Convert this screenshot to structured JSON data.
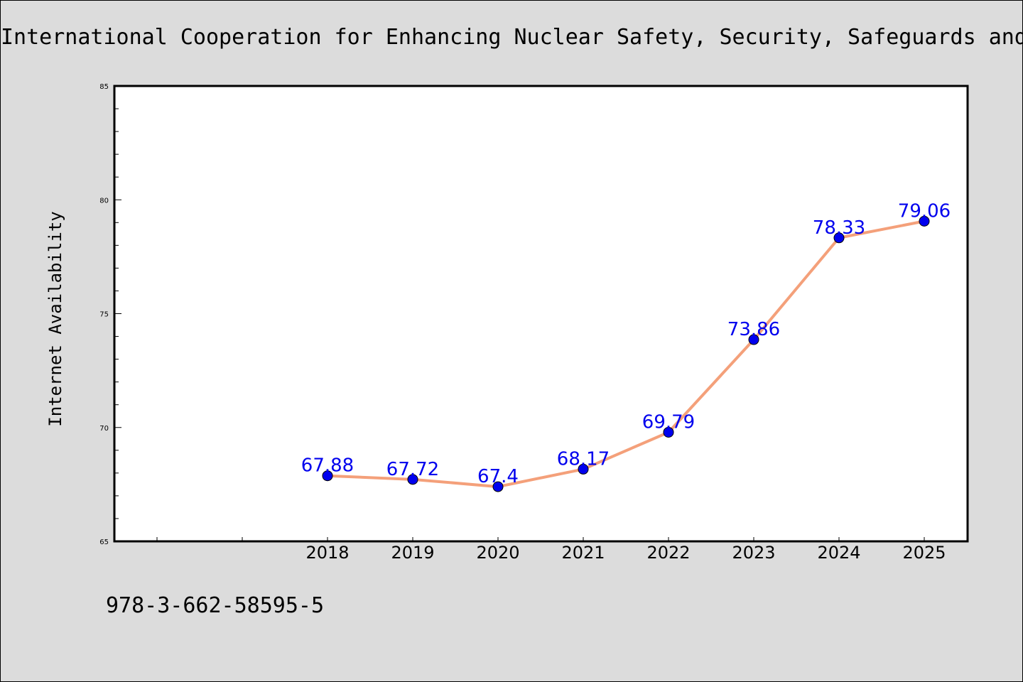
{
  "chart_data": {
    "type": "line",
    "title": "International Cooperation for Enhancing Nuclear Safety, Security, Safeguards and",
    "xlabel": "",
    "ylabel": "Internet Availability",
    "x": [
      "2018",
      "2019",
      "2020",
      "2021",
      "2022",
      "2023",
      "2024",
      "2025"
    ],
    "series": [
      {
        "values": [
          67.88,
          67.72,
          67.4,
          68.17,
          69.79,
          73.86,
          78.33,
          79.06
        ]
      }
    ],
    "data_labels": [
      "67.88",
      "67.72",
      "67.4",
      "68.17",
      "69.79",
      "73.86",
      "78.33",
      "79.06"
    ],
    "ylim": [
      65,
      85
    ],
    "yticks": [
      "65",
      "70",
      "75",
      "80",
      "85"
    ],
    "grid": false,
    "legend": "none",
    "colors": {
      "line": "#f4a07a",
      "marker": "#0000ee",
      "label": "#0000ee",
      "background": "#dcdcdc",
      "plot_bg": "#ffffff"
    }
  },
  "footnote": "978-3-662-58595-5"
}
